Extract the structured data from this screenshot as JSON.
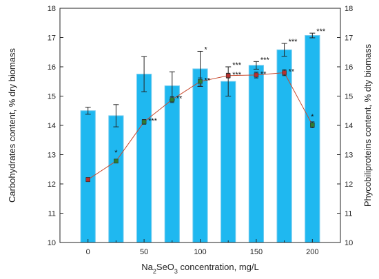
{
  "chart_data": {
    "type": "bar",
    "x_ticks": [
      "0",
      "50",
      "100",
      "150",
      "200"
    ],
    "x": [
      0,
      25,
      50,
      75,
      100,
      125,
      150,
      175,
      200
    ],
    "xlim": [
      -25,
      225
    ],
    "ylim": [
      10,
      18
    ],
    "y_ticks": [
      "10",
      "11",
      "12",
      "13",
      "14",
      "15",
      "16",
      "17",
      "18"
    ],
    "y2_ticks": [
      "10",
      "11",
      "12",
      "13",
      "14",
      "15",
      "16",
      "17",
      "18"
    ],
    "xlabel_parts": [
      "Na",
      "2",
      "SeO",
      "3",
      " concentration, mg/L"
    ],
    "ylabel_left": "Carbohydrates content, % dry biomass",
    "ylabel_right": "Phycobiliproteins content, % dty biomass",
    "bar_color": "#1fb8f0",
    "bar_edge_color": "#6ec9ee",
    "line_color": "#c84a2e",
    "series": [
      {
        "kind": "bar",
        "values": [
          14.5,
          14.33,
          15.75,
          15.35,
          15.93,
          15.5,
          16.05,
          16.58,
          17.07
        ],
        "errors": [
          0.12,
          0.38,
          0.6,
          0.48,
          0.6,
          0.5,
          0.13,
          0.22,
          0.08
        ],
        "significance": [
          "",
          "",
          "",
          "",
          "*",
          "***",
          "***",
          "***",
          "***"
        ]
      },
      {
        "kind": "line",
        "values": [
          12.15,
          12.78,
          14.12,
          14.88,
          15.5,
          15.7,
          15.72,
          15.8,
          14.02
        ],
        "errors": [
          0.07,
          0.06,
          0.08,
          0.1,
          0.12,
          0.08,
          0.1,
          0.1,
          0.1
        ],
        "marker_colors": [
          "#b8302e",
          "#2e7d32",
          "#2e7d32",
          "#2e7d32",
          "#2e7d32",
          "#b8302e",
          "#b8302e",
          "#b8302e",
          "#2e7d32"
        ],
        "significance": [
          "",
          "*",
          "***",
          "**",
          "**",
          "***",
          "**",
          "**",
          "*"
        ]
      }
    ]
  }
}
